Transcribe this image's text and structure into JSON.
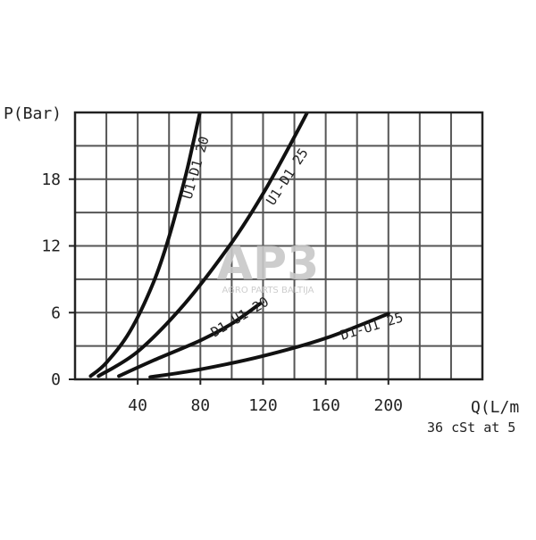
{
  "chart_data": {
    "type": "line",
    "title": "",
    "xlabel": "Q(L/m",
    "ylabel": "P(Bar)",
    "note": "36 cSt at 5",
    "xlim": [
      0,
      260
    ],
    "ylim": [
      0,
      24
    ],
    "x_ticks": [
      40,
      80,
      120,
      160,
      200
    ],
    "x_tick_labels": [
      "40",
      "80",
      "120",
      "160",
      "200"
    ],
    "y_ticks": [
      0,
      6,
      12,
      18
    ],
    "y_tick_labels": [
      "0",
      "6",
      "12",
      "18"
    ],
    "grid": true,
    "grid_x_step": 20,
    "grid_y_step": 3,
    "series": [
      {
        "name": "U1-D1 20",
        "x": [
          10,
          20,
          35,
          50,
          60,
          70,
          75,
          80
        ],
        "y": [
          0.3,
          1.5,
          4.3,
          8.7,
          12.8,
          18.0,
          21.0,
          24.2
        ]
      },
      {
        "name": "U1-D1 25",
        "x": [
          15,
          40,
          70,
          100,
          120,
          140,
          150
        ],
        "y": [
          0.3,
          2.5,
          6.8,
          12.3,
          16.7,
          21.8,
          24.5
        ]
      },
      {
        "name": "D1-U1 20",
        "x": [
          28,
          50,
          80,
          100,
          118
        ],
        "y": [
          0.3,
          1.7,
          3.5,
          5.0,
          6.8
        ]
      },
      {
        "name": "D1-U1 25",
        "x": [
          48,
          80,
          120,
          160,
          200
        ],
        "y": [
          0.2,
          0.9,
          2.1,
          3.7,
          5.9
        ]
      }
    ]
  },
  "watermark": {
    "letters": "AP3",
    "text": "AGRO PARTS BALTIJA"
  }
}
